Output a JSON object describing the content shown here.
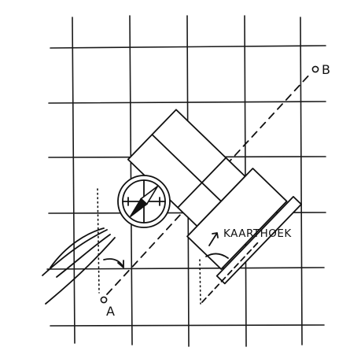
{
  "diagram": {
    "labels": {
      "point_a": "A",
      "point_b": "B",
      "kaarthoek": "KAARTHOEK"
    },
    "colors": {
      "ink": "#111111",
      "paper": "#ffffff"
    },
    "icons": [
      "compass-icon",
      "compass-needle-icon"
    ]
  }
}
